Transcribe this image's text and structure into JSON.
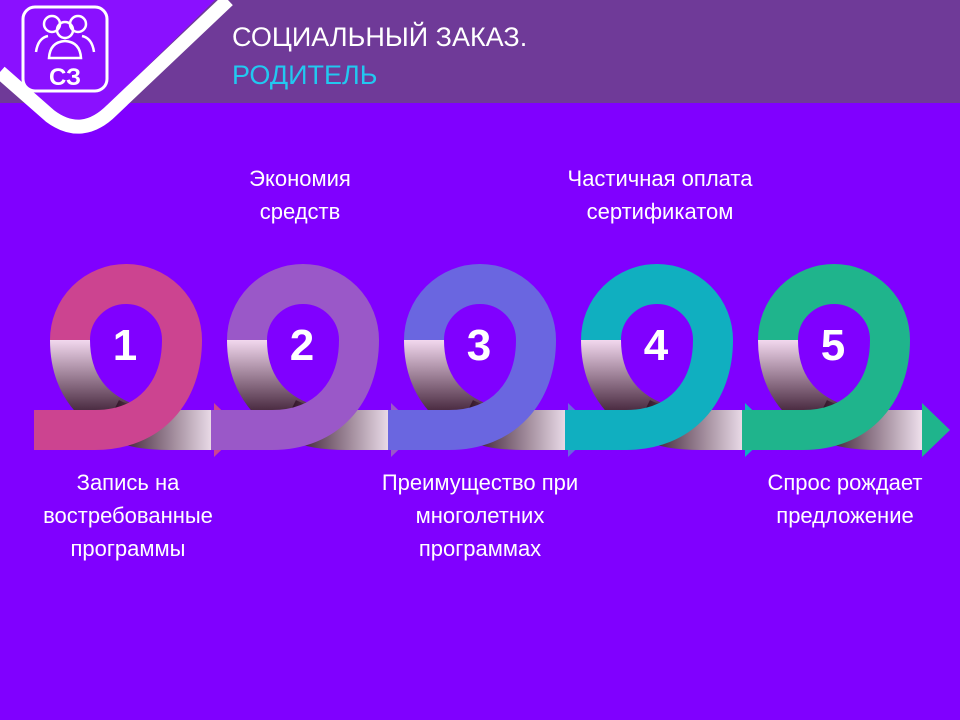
{
  "header": {
    "title": "СОЦИАЛЬНЫЙ ЗАКАЗ.",
    "subtitle": "РОДИТЕЛЬ",
    "logo_text": "СЗ",
    "logo_icon": "people-group-icon"
  },
  "colors": {
    "background": "#8000ff",
    "header_band": "#6f3a98",
    "subtitle": "#22c8f0"
  },
  "steps": [
    {
      "number": "1",
      "caption": "Запись на востребованные программы",
      "color": "#cc4490",
      "position": "below"
    },
    {
      "number": "2",
      "caption": "Экономия средств",
      "color": "#9a58c8",
      "position": "above"
    },
    {
      "number": "3",
      "caption": "Преимущество при многолетних программах",
      "color": "#6a66e0",
      "position": "below"
    },
    {
      "number": "4",
      "caption": "Частичная оплата сертификатом",
      "color": "#10afc0",
      "position": "above"
    },
    {
      "number": "5",
      "caption": "Спрос рождает предложение",
      "color": "#1fb48c",
      "position": "below"
    }
  ]
}
